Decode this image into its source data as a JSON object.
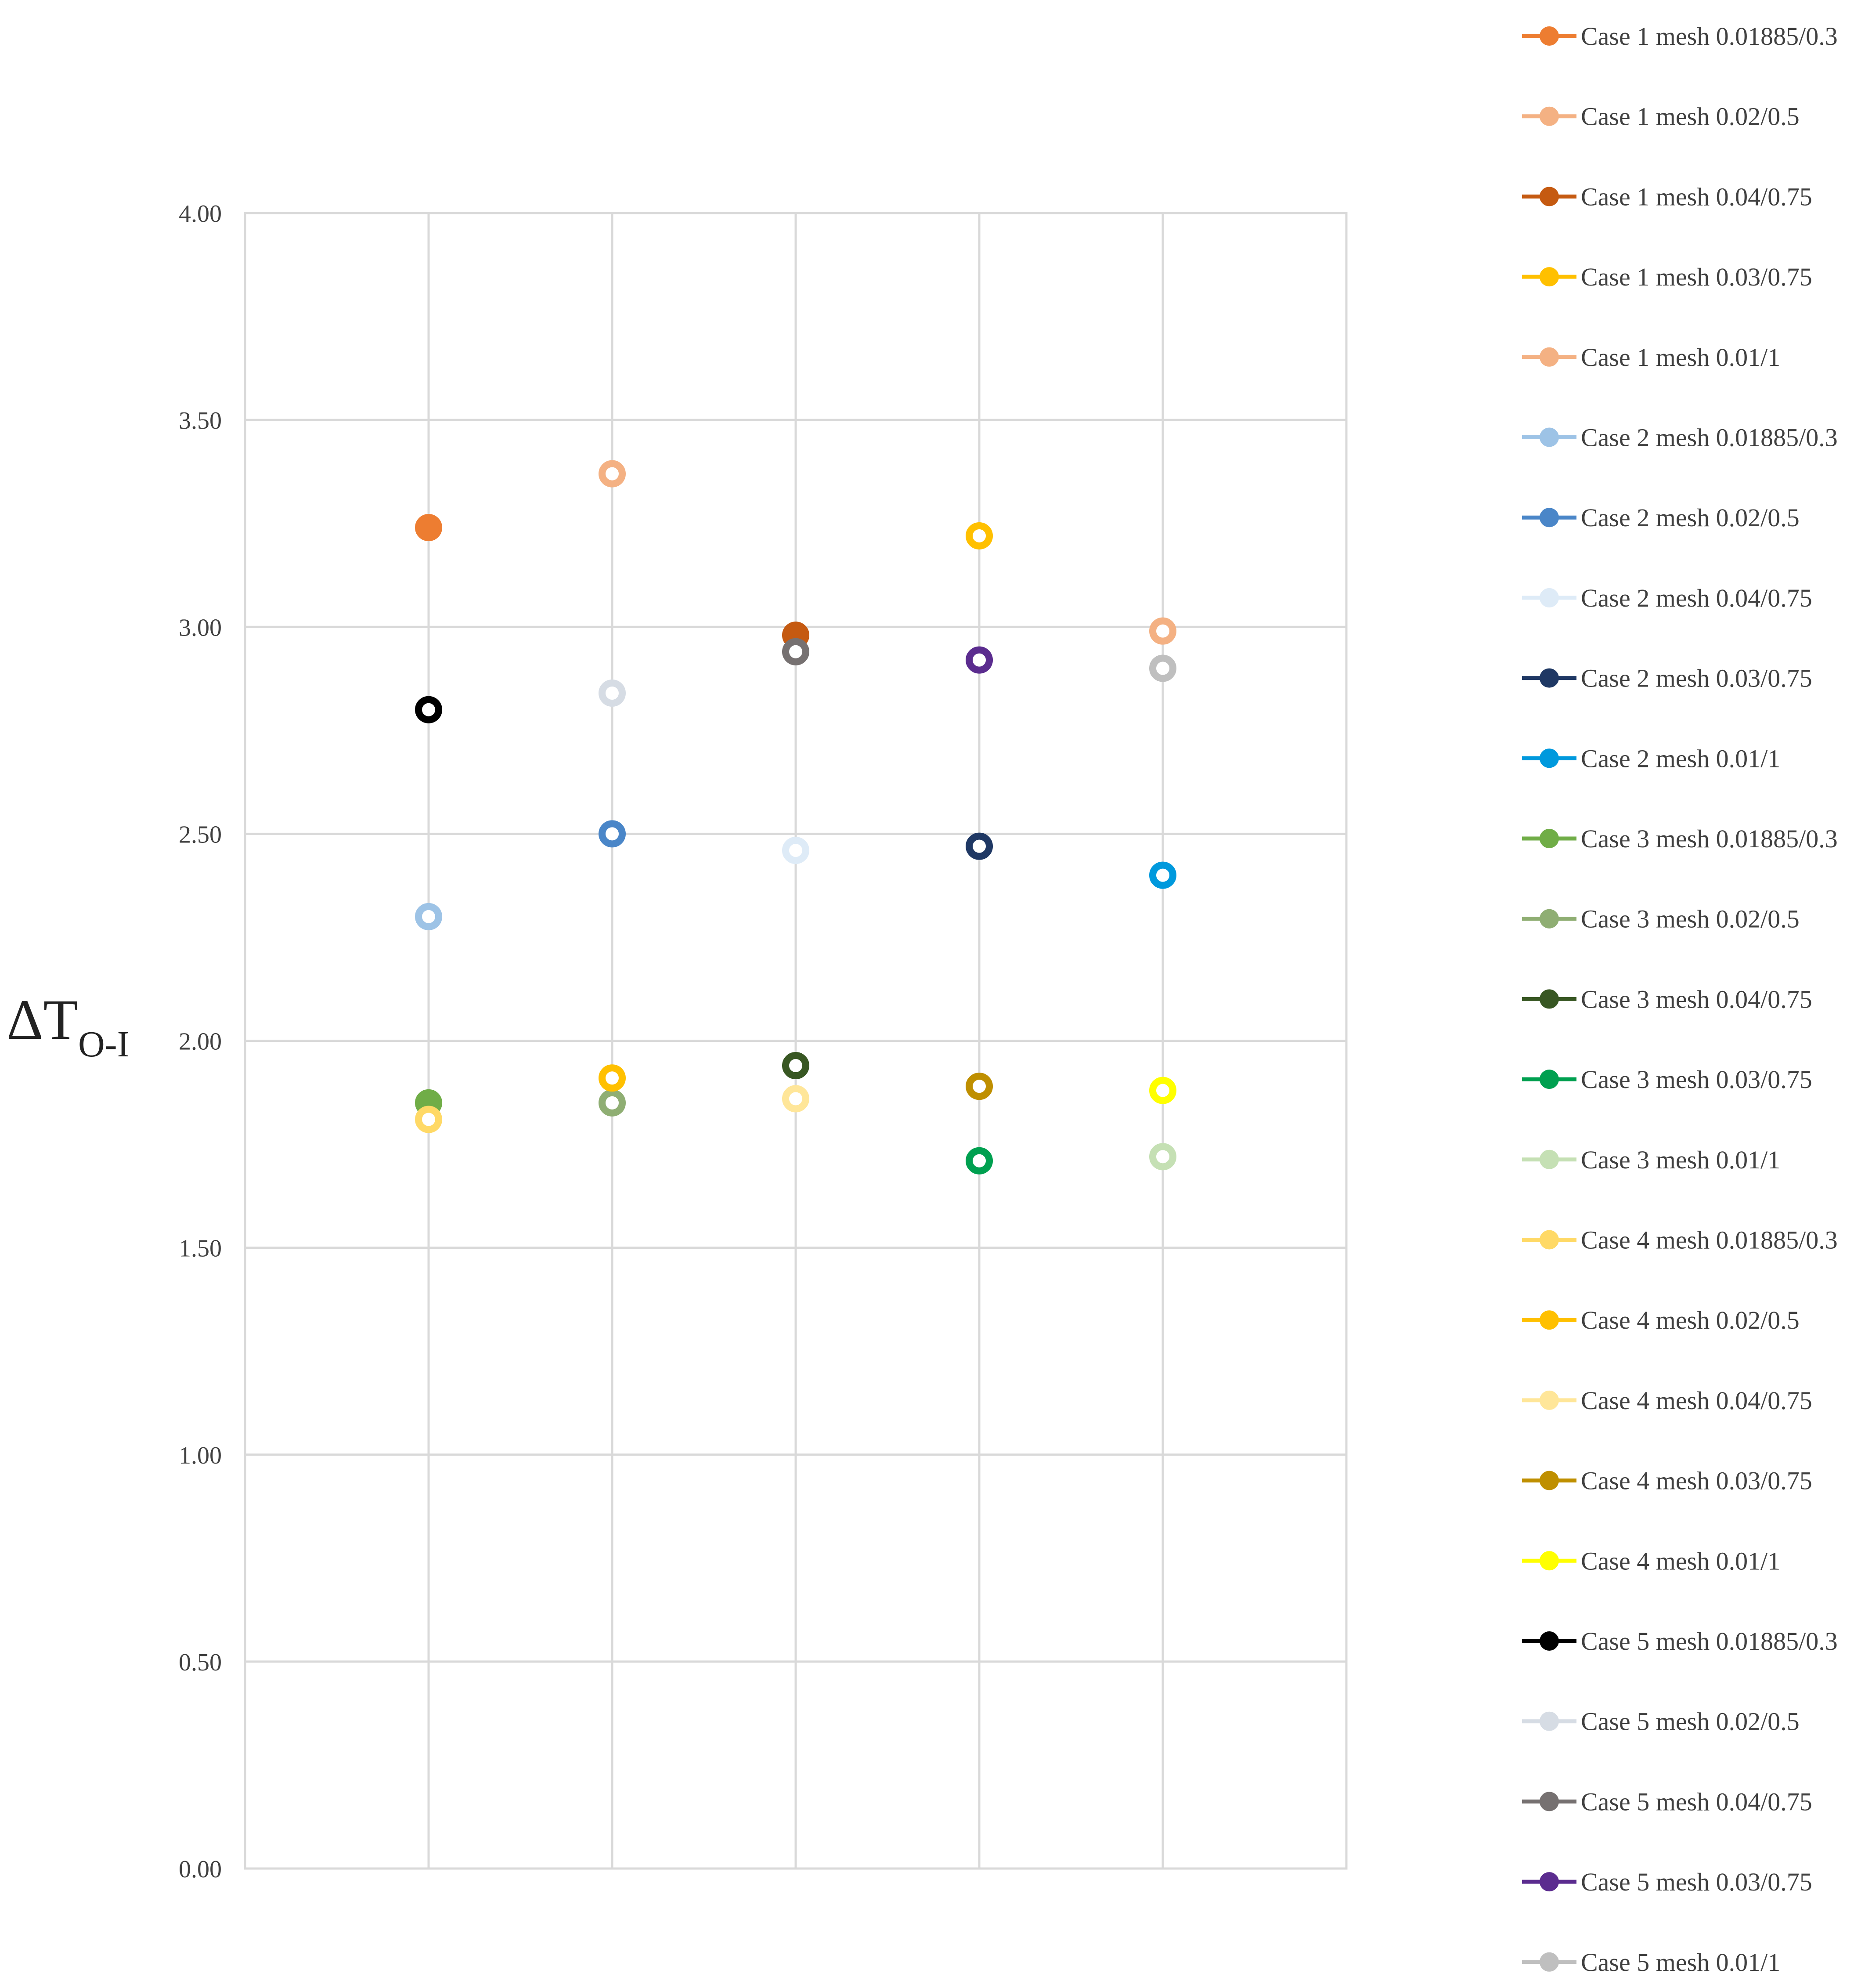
{
  "chart_data": {
    "type": "scatter",
    "title": "",
    "xlabel": "",
    "ylabel": {
      "main": "ΔT",
      "sub": "O-I"
    },
    "ylim": [
      0,
      4
    ],
    "yticks": [
      "0.00",
      "0.50",
      "1.00",
      "1.50",
      "2.00",
      "2.50",
      "3.00",
      "3.50",
      "4.00"
    ],
    "x_categories": 5,
    "grid": true,
    "legend_position": "right",
    "series": [
      {
        "name": "Case 1 mesh 0.01885/0.3",
        "x": 1,
        "value": 3.24,
        "color": "#ED7D31",
        "filled": true
      },
      {
        "name": "Case 1 mesh 0.02/0.5",
        "x": 2,
        "value": 3.37,
        "color": "#F4B183",
        "filled": false
      },
      {
        "name": "Case 1 mesh 0.04/0.75",
        "x": 3,
        "value": 2.98,
        "color": "#C55A11",
        "filled": true
      },
      {
        "name": "Case 1 mesh 0.03/0.75",
        "x": 4,
        "value": 3.22,
        "color": "#FFC000",
        "filled": false
      },
      {
        "name": "Case 1 mesh 0.01/1",
        "x": 5,
        "value": 2.99,
        "color": "#F4B183",
        "filled": false
      },
      {
        "name": "Case 2 mesh 0.01885/0.3",
        "x": 1,
        "value": 2.3,
        "color": "#9DC3E6",
        "filled": false
      },
      {
        "name": "Case 2 mesh 0.02/0.5",
        "x": 2,
        "value": 2.5,
        "color": "#4A86C8",
        "filled": false
      },
      {
        "name": "Case 2 mesh 0.04/0.75",
        "x": 3,
        "value": 2.46,
        "color": "#DEEBF7",
        "filled": false
      },
      {
        "name": "Case 2 mesh 0.03/0.75",
        "x": 4,
        "value": 2.47,
        "color": "#1F3864",
        "filled": false
      },
      {
        "name": "Case 2 mesh 0.01/1",
        "x": 5,
        "value": 2.4,
        "color": "#0099DD",
        "filled": false
      },
      {
        "name": "Case 3 mesh 0.01885/0.3",
        "x": 1,
        "value": 1.85,
        "color": "#70AD47",
        "filled": true
      },
      {
        "name": "Case 3 mesh 0.02/0.5",
        "x": 2,
        "value": 1.85,
        "color": "#8FAE73",
        "filled": false
      },
      {
        "name": "Case 3 mesh 0.04/0.75",
        "x": 3,
        "value": 1.94,
        "color": "#385723",
        "filled": false
      },
      {
        "name": "Case 3 mesh 0.03/0.75",
        "x": 4,
        "value": 1.71,
        "color": "#00A050",
        "filled": false
      },
      {
        "name": "Case 3 mesh 0.01/1",
        "x": 5,
        "value": 1.72,
        "color": "#C5E0B4",
        "filled": false
      },
      {
        "name": "Case 4 mesh 0.01885/0.3",
        "x": 1,
        "value": 1.81,
        "color": "#FFD966",
        "filled": false
      },
      {
        "name": "Case 4 mesh 0.02/0.5",
        "x": 2,
        "value": 1.91,
        "color": "#FFC000",
        "filled": false
      },
      {
        "name": "Case 4 mesh 0.04/0.75",
        "x": 3,
        "value": 1.86,
        "color": "#FFE699",
        "filled": false
      },
      {
        "name": "Case 4 mesh 0.03/0.75",
        "x": 4,
        "value": 1.89,
        "color": "#BF8F00",
        "filled": false
      },
      {
        "name": "Case 4 mesh 0.01/1",
        "x": 5,
        "value": 1.88,
        "color": "#FFFF00",
        "filled": false
      },
      {
        "name": "Case 5 mesh 0.01885/0.3",
        "x": 1,
        "value": 2.8,
        "color": "#000000",
        "filled": false
      },
      {
        "name": "Case 5 mesh 0.02/0.5",
        "x": 2,
        "value": 2.84,
        "color": "#D6DCE4",
        "filled": false
      },
      {
        "name": "Case 5 mesh 0.04/0.75",
        "x": 3,
        "value": 2.94,
        "color": "#767171",
        "filled": false
      },
      {
        "name": "Case 5 mesh 0.03/0.75",
        "x": 4,
        "value": 2.92,
        "color": "#5B2C8F",
        "filled": false
      },
      {
        "name": "Case 5 mesh 0.01/1",
        "x": 5,
        "value": 2.9,
        "color": "#BFBFBF",
        "filled": false
      }
    ]
  }
}
